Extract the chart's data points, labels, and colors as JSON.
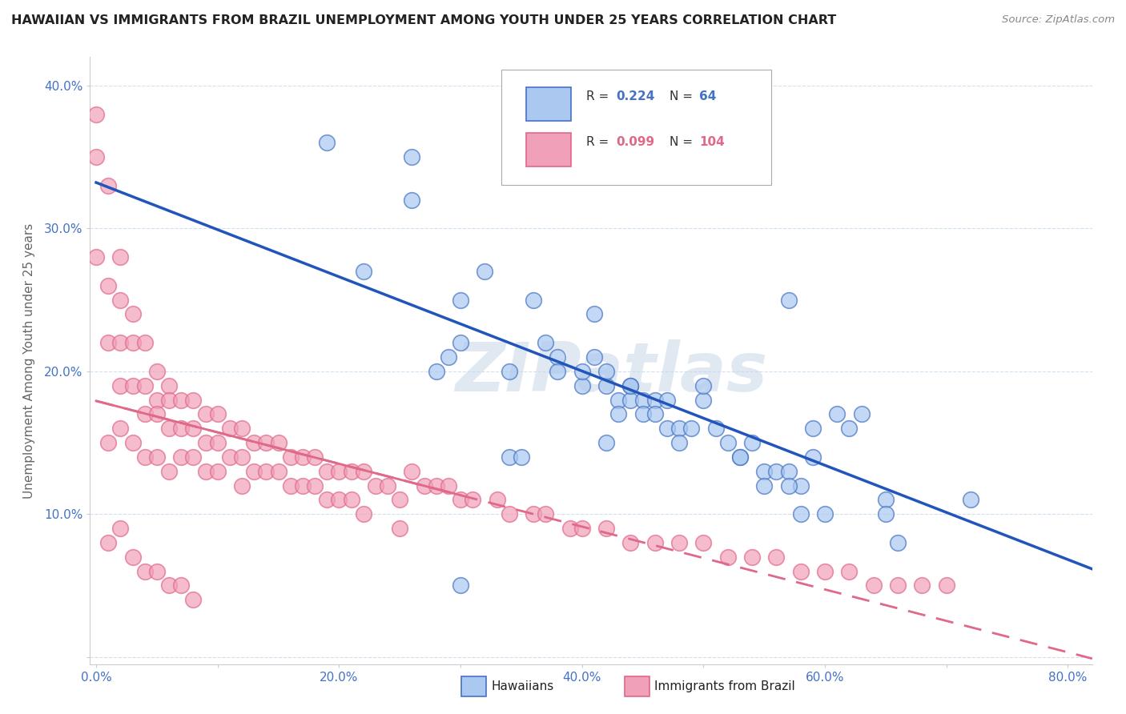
{
  "title": "HAWAIIAN VS IMMIGRANTS FROM BRAZIL UNEMPLOYMENT AMONG YOUTH UNDER 25 YEARS CORRELATION CHART",
  "source": "Source: ZipAtlas.com",
  "ylabel": "Unemployment Among Youth under 25 years",
  "xlim": [
    -0.005,
    0.82
  ],
  "ylim": [
    -0.005,
    0.42
  ],
  "xticks": [
    0.0,
    0.1,
    0.2,
    0.3,
    0.4,
    0.5,
    0.6,
    0.7,
    0.8
  ],
  "xticklabels": [
    "0.0%",
    "",
    "20.0%",
    "",
    "40.0%",
    "",
    "60.0%",
    "",
    "80.0%"
  ],
  "yticks": [
    0.0,
    0.1,
    0.2,
    0.3,
    0.4
  ],
  "yticklabels": [
    "",
    "10.0%",
    "20.0%",
    "30.0%",
    "40.0%"
  ],
  "color_hawaiian_face": "#aac8f0",
  "color_hawaiian_edge": "#4472c4",
  "color_brazil_face": "#f0a0b8",
  "color_brazil_edge": "#e06888",
  "color_line_hawaiian": "#2255bb",
  "color_line_brazil": "#e06888",
  "watermark": "ZIPatlas",
  "hawaiian_x": [
    0.19,
    0.22,
    0.26,
    0.26,
    0.3,
    0.3,
    0.32,
    0.34,
    0.36,
    0.37,
    0.38,
    0.4,
    0.4,
    0.41,
    0.42,
    0.43,
    0.44,
    0.44,
    0.45,
    0.46,
    0.47,
    0.47,
    0.48,
    0.49,
    0.5,
    0.51,
    0.52,
    0.53,
    0.54,
    0.55,
    0.56,
    0.57,
    0.58,
    0.58,
    0.59,
    0.6,
    0.61,
    0.62,
    0.63,
    0.65,
    0.66,
    0.52,
    0.41,
    0.42,
    0.57,
    0.59,
    0.72,
    0.3,
    0.29,
    0.34,
    0.35,
    0.38,
    0.42,
    0.43,
    0.44,
    0.45,
    0.46,
    0.48,
    0.5,
    0.53,
    0.55,
    0.57,
    0.28,
    0.65
  ],
  "hawaiian_y": [
    0.36,
    0.27,
    0.35,
    0.32,
    0.22,
    0.25,
    0.27,
    0.2,
    0.25,
    0.22,
    0.21,
    0.19,
    0.2,
    0.21,
    0.19,
    0.18,
    0.19,
    0.18,
    0.18,
    0.18,
    0.16,
    0.18,
    0.16,
    0.16,
    0.18,
    0.16,
    0.15,
    0.14,
    0.15,
    0.13,
    0.13,
    0.13,
    0.12,
    0.1,
    0.16,
    0.1,
    0.17,
    0.16,
    0.17,
    0.11,
    0.08,
    0.35,
    0.24,
    0.15,
    0.25,
    0.14,
    0.11,
    0.05,
    0.21,
    0.14,
    0.14,
    0.2,
    0.2,
    0.17,
    0.19,
    0.17,
    0.17,
    0.15,
    0.19,
    0.14,
    0.12,
    0.12,
    0.2,
    0.1
  ],
  "brazil_x": [
    0.0,
    0.0,
    0.0,
    0.01,
    0.01,
    0.01,
    0.01,
    0.02,
    0.02,
    0.02,
    0.02,
    0.02,
    0.03,
    0.03,
    0.03,
    0.03,
    0.04,
    0.04,
    0.04,
    0.04,
    0.05,
    0.05,
    0.05,
    0.05,
    0.06,
    0.06,
    0.06,
    0.06,
    0.07,
    0.07,
    0.07,
    0.08,
    0.08,
    0.08,
    0.09,
    0.09,
    0.09,
    0.1,
    0.1,
    0.1,
    0.11,
    0.11,
    0.12,
    0.12,
    0.12,
    0.13,
    0.13,
    0.14,
    0.14,
    0.15,
    0.15,
    0.16,
    0.16,
    0.17,
    0.17,
    0.18,
    0.18,
    0.19,
    0.19,
    0.2,
    0.2,
    0.21,
    0.21,
    0.22,
    0.22,
    0.23,
    0.24,
    0.25,
    0.25,
    0.26,
    0.27,
    0.28,
    0.29,
    0.3,
    0.31,
    0.33,
    0.34,
    0.36,
    0.37,
    0.39,
    0.4,
    0.42,
    0.44,
    0.46,
    0.48,
    0.5,
    0.52,
    0.54,
    0.56,
    0.58,
    0.6,
    0.62,
    0.64,
    0.66,
    0.68,
    0.7,
    0.01,
    0.02,
    0.03,
    0.04,
    0.05,
    0.06,
    0.07,
    0.08
  ],
  "brazil_y": [
    0.38,
    0.35,
    0.28,
    0.33,
    0.26,
    0.22,
    0.15,
    0.28,
    0.25,
    0.22,
    0.19,
    0.16,
    0.24,
    0.22,
    0.19,
    0.15,
    0.22,
    0.19,
    0.17,
    0.14,
    0.2,
    0.18,
    0.17,
    0.14,
    0.19,
    0.18,
    0.16,
    0.13,
    0.18,
    0.16,
    0.14,
    0.18,
    0.16,
    0.14,
    0.17,
    0.15,
    0.13,
    0.17,
    0.15,
    0.13,
    0.16,
    0.14,
    0.16,
    0.14,
    0.12,
    0.15,
    0.13,
    0.15,
    0.13,
    0.15,
    0.13,
    0.14,
    0.12,
    0.14,
    0.12,
    0.14,
    0.12,
    0.13,
    0.11,
    0.13,
    0.11,
    0.13,
    0.11,
    0.13,
    0.1,
    0.12,
    0.12,
    0.11,
    0.09,
    0.13,
    0.12,
    0.12,
    0.12,
    0.11,
    0.11,
    0.11,
    0.1,
    0.1,
    0.1,
    0.09,
    0.09,
    0.09,
    0.08,
    0.08,
    0.08,
    0.08,
    0.07,
    0.07,
    0.07,
    0.06,
    0.06,
    0.06,
    0.05,
    0.05,
    0.05,
    0.05,
    0.08,
    0.09,
    0.07,
    0.06,
    0.06,
    0.05,
    0.05,
    0.04
  ]
}
